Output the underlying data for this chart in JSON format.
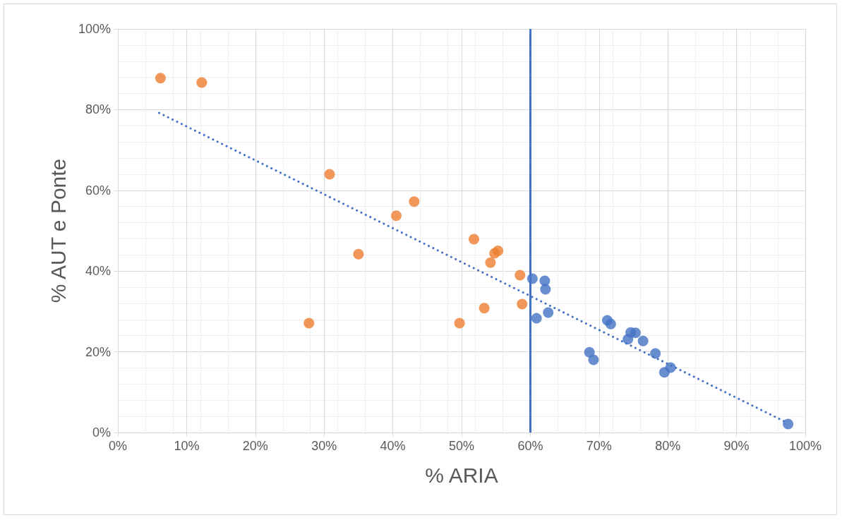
{
  "chart_data": {
    "type": "scatter",
    "xlabel": "% ARIA",
    "ylabel": "% AUT e Ponte",
    "xlim": [
      0,
      100
    ],
    "ylim": [
      0,
      100
    ],
    "xticks": [
      {
        "value": 0,
        "label": "0%"
      },
      {
        "value": 10,
        "label": "10%"
      },
      {
        "value": 20,
        "label": "20%"
      },
      {
        "value": 30,
        "label": "30%"
      },
      {
        "value": 40,
        "label": "40%"
      },
      {
        "value": 50,
        "label": "50%"
      },
      {
        "value": 60,
        "label": "60%"
      },
      {
        "value": 70,
        "label": "70%"
      },
      {
        "value": 80,
        "label": "80%"
      },
      {
        "value": 90,
        "label": "90%"
      },
      {
        "value": 100,
        "label": "100%"
      }
    ],
    "yticks": [
      {
        "value": 0,
        "label": "0%"
      },
      {
        "value": 20,
        "label": "20%"
      },
      {
        "value": 40,
        "label": "40%"
      },
      {
        "value": 60,
        "label": "60%"
      },
      {
        "value": 80,
        "label": "80%"
      },
      {
        "value": 100,
        "label": "100%"
      }
    ],
    "grid": true,
    "marker": "circle",
    "series": [
      {
        "color": "#ed7d31",
        "x": [
          6.2,
          12.2,
          30.8,
          40.5,
          43.1,
          35.0,
          27.8,
          51.8,
          54.8,
          55.3,
          54.2,
          58.5,
          58.8,
          53.3,
          49.7
        ],
        "values": [
          87.8,
          86.7,
          64.0,
          53.7,
          57.2,
          44.2,
          27.1,
          47.9,
          44.4,
          45.0,
          42.1,
          39.0,
          31.8,
          30.8,
          27.1
        ]
      },
      {
        "color": "#4472c4",
        "x": [
          60.3,
          62.1,
          62.2,
          60.9,
          62.6,
          71.2,
          71.7,
          68.6,
          69.2,
          74.6,
          75.3,
          74.2,
          76.4,
          78.2,
          79.5,
          80.4,
          97.5
        ],
        "values": [
          38.1,
          37.6,
          35.5,
          28.3,
          29.7,
          27.8,
          26.9,
          19.9,
          18.0,
          24.8,
          24.7,
          23.1,
          22.7,
          19.6,
          14.9,
          16.1,
          2.1
        ]
      },
      {
        "type": "line",
        "color": "#4472c4",
        "marker": "none",
        "line_style": "dotted",
        "x": [
          6.0,
          97.5
        ],
        "values": [
          79.2,
          2.3
        ]
      }
    ],
    "ref_lines": [
      {
        "axis": "x",
        "value": 60,
        "color": "#4472c4",
        "line_style": "solid"
      }
    ]
  }
}
